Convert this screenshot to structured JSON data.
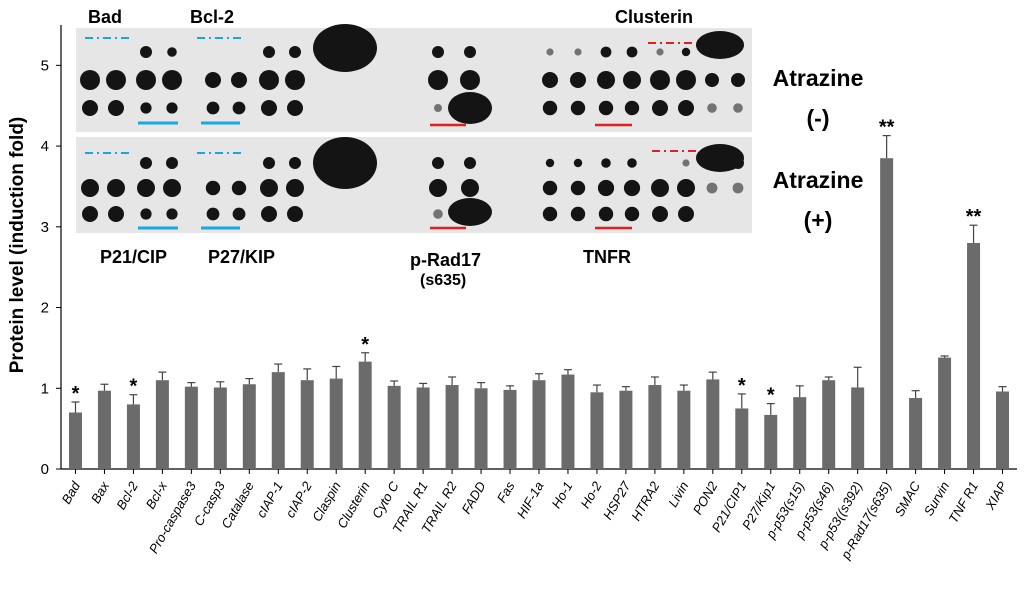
{
  "chart_data": {
    "type": "bar",
    "ylabel": "Protein level (induction fold)",
    "ylim": [
      0,
      5.5
    ],
    "yticks": [
      "0",
      "1",
      "2",
      "3",
      "4",
      "5"
    ],
    "grid": false,
    "bar_color": "#6b6b6b",
    "categories": [
      "Bad",
      "Bax",
      "Bcl-2",
      "Bcl-x",
      "Pro-caspase3",
      "C-casp3",
      "Catalase",
      "cIAP-1",
      "cIAP-2",
      "Claspin",
      "Clusterin",
      "Cyto C",
      "TRAIL R1",
      "TRAIL R2",
      "FADD",
      "Fas",
      "HIF-1a",
      "Ho-1",
      "Ho-2",
      "HSP27",
      "HTRA2",
      "Livin",
      "PON2",
      "P21/CIP1",
      "P27/Kip1",
      "p-p53(s15)",
      "p-p53(s46)",
      "p-p53((s392)",
      "p-Rad17(s635)",
      "SMAC",
      "Survin",
      "TNF R1",
      "XIAP"
    ],
    "values": [
      0.7,
      0.97,
      0.8,
      1.1,
      1.02,
      1.01,
      1.05,
      1.2,
      1.1,
      1.12,
      1.33,
      1.03,
      1.01,
      1.04,
      1.0,
      0.98,
      1.1,
      1.17,
      0.95,
      0.97,
      1.04,
      0.97,
      1.11,
      0.75,
      0.67,
      0.89,
      1.1,
      1.01,
      3.85,
      0.88,
      1.38,
      2.8,
      0.96
    ],
    "errors": [
      0.13,
      0.08,
      0.12,
      0.1,
      0.05,
      0.07,
      0.07,
      0.1,
      0.14,
      0.15,
      0.11,
      0.06,
      0.05,
      0.1,
      0.07,
      0.05,
      0.08,
      0.06,
      0.09,
      0.05,
      0.1,
      0.07,
      0.09,
      0.18,
      0.14,
      0.14,
      0.04,
      0.25,
      0.28,
      0.09,
      0.02,
      0.22,
      0.06
    ],
    "significance": [
      "*",
      "",
      "*",
      "",
      "",
      "",
      "",
      "",
      "",
      "",
      "*",
      "",
      "",
      "",
      "",
      "",
      "",
      "",
      "",
      "",
      "",
      "",
      "",
      "*",
      "*",
      "",
      "",
      "",
      "**",
      "",
      "",
      "**",
      ""
    ]
  },
  "blot_inset": {
    "labels_top": [
      "Bad",
      "Bcl-2",
      "Clusterin"
    ],
    "labels_bottom": [
      "P21/CIP",
      "P27/KIP",
      "p-Rad17",
      "(s635)",
      "TNFR"
    ],
    "condition_minus": [
      "Atrazine",
      "(-)"
    ],
    "condition_plus": [
      "Atrazine",
      "(+)"
    ],
    "colors": {
      "blue_marker": "#1aa7e0",
      "red_marker": "#e02020",
      "membrane": "#e6e6e6",
      "spot": "#141414"
    }
  }
}
